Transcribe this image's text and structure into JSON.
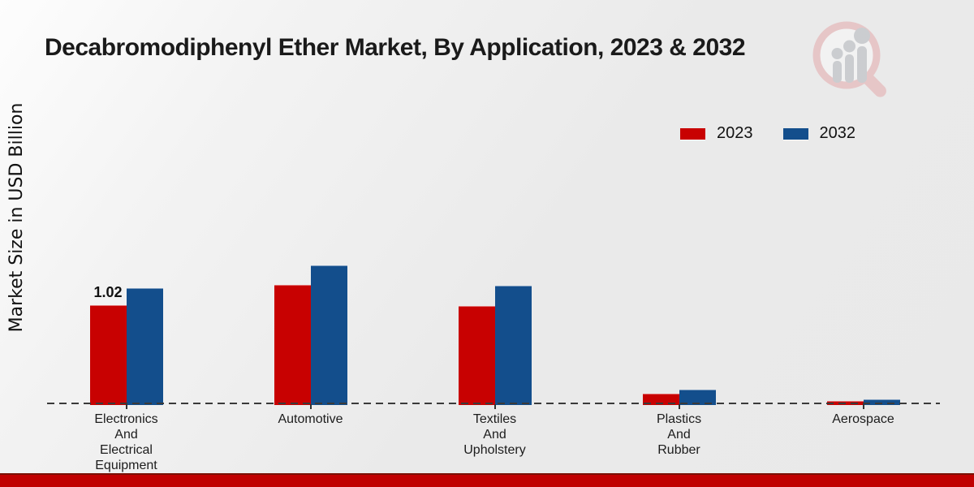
{
  "title": "Decabromodiphenyl Ether Market, By Application, 2023 & 2032",
  "y_axis_label": "Market Size in USD Billion",
  "brand_logo": "magnifier-bar-chart-logo",
  "colors": {
    "series_2023": "#c80101",
    "series_2032": "#134e8c",
    "footer_bar": "#c00000",
    "axis_dash": "#3a3a3a",
    "logo_pink": "#e6c0c2",
    "logo_gray": "#c6c8cc"
  },
  "legend": {
    "position": "top-right",
    "entries": [
      {
        "label": "2023",
        "color": "#c80101"
      },
      {
        "label": "2032",
        "color": "#134e8c"
      }
    ]
  },
  "chart_data": {
    "type": "bar",
    "title": "Decabromodiphenyl Ether Market, By Application, 2023 & 2032",
    "xlabel": "",
    "ylabel": "Market Size in USD Billion",
    "categories": [
      "Electronics And Electrical Equipment",
      "Automotive",
      "Textiles And Upholstery",
      "Plastics And Rubber",
      "Aerospace"
    ],
    "category_display_lines": [
      [
        "Electronics",
        "And",
        "Electrical",
        "Equipment"
      ],
      [
        "Automotive"
      ],
      [
        "Textiles",
        "And",
        "Upholstery"
      ],
      [
        "Plastics",
        "And",
        "Rubber"
      ],
      [
        "Aerospace"
      ]
    ],
    "series": [
      {
        "name": "2023",
        "color": "#c80101",
        "values": [
          1.02,
          1.23,
          1.01,
          0.12,
          0.04
        ]
      },
      {
        "name": "2032",
        "color": "#134e8c",
        "values": [
          1.19,
          1.43,
          1.22,
          0.16,
          0.06
        ]
      }
    ],
    "data_labels": [
      {
        "series": "2023",
        "category_index": 0,
        "text": "1.02"
      }
    ],
    "ylim": [
      0,
      1.6
    ],
    "grid": false,
    "baseline_style": "dashed",
    "legend_position": "top-right"
  }
}
